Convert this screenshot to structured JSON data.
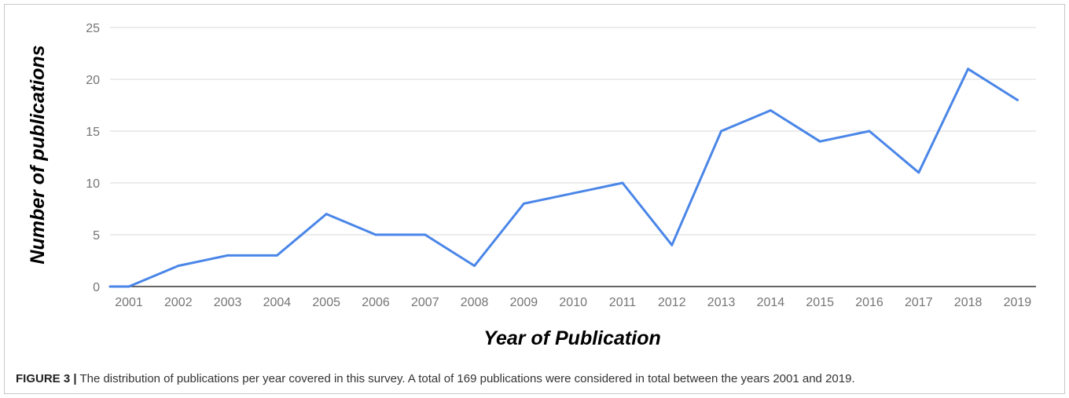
{
  "chart_data": {
    "type": "line",
    "xlabel": "Year of Publication",
    "ylabel": "Number of publications",
    "categories": [
      "2001",
      "2002",
      "2003",
      "2004",
      "2005",
      "2006",
      "2007",
      "2008",
      "2009",
      "2010",
      "2011",
      "2012",
      "2013",
      "2014",
      "2015",
      "2016",
      "2017",
      "2018",
      "2019"
    ],
    "series": [
      {
        "values": [
          0,
          2,
          3,
          3,
          7,
          5,
          5,
          2,
          8,
          9,
          10,
          4,
          15,
          17,
          14,
          15,
          11,
          21,
          18
        ]
      }
    ],
    "ylim": [
      0,
      25
    ],
    "yticks": [
      0,
      5,
      10,
      15,
      20,
      25
    ],
    "grid": true,
    "line_color": "#4a86e8",
    "grid_color": "#d9d9d9",
    "axis_color": "#333333"
  },
  "caption": {
    "label": "FIGURE 3 |",
    "text": " The distribution of publications per year covered in this survey. A total of 169 publications were considered in total between the years 2001 and 2019."
  }
}
